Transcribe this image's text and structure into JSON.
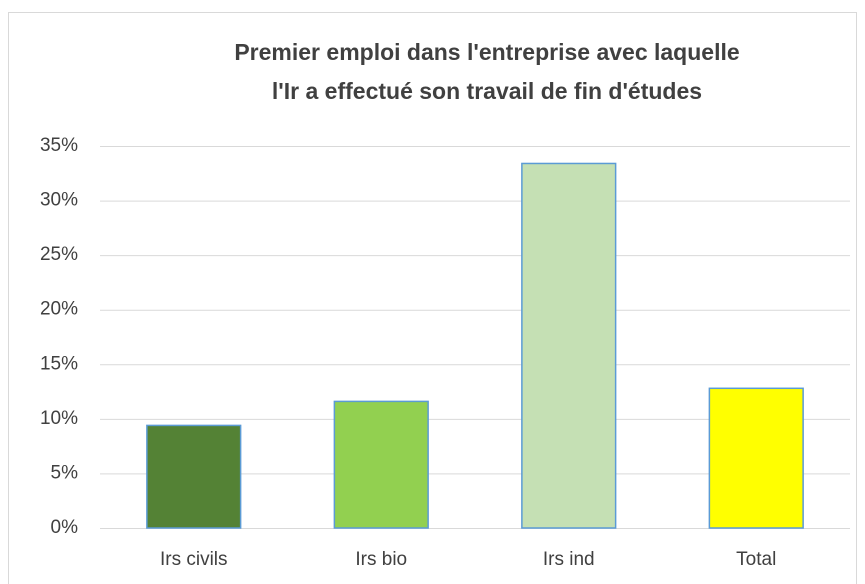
{
  "chart_data": {
    "type": "bar",
    "title": [
      "Premier emploi dans l'entreprise avec laquelle",
      "l'Ir a effectué son travail de fin d'études"
    ],
    "categories": [
      "Irs civils",
      "Irs bio",
      "Irs ind",
      "Total"
    ],
    "values": [
      9.4,
      11.6,
      33.4,
      12.8
    ],
    "colors": [
      "#548235",
      "#92d050",
      "#c5e0b4",
      "#ffff00"
    ],
    "ylim": [
      0,
      35
    ],
    "yticks": [
      {
        "value": 0,
        "label": "0%"
      },
      {
        "value": 5,
        "label": "5%"
      },
      {
        "value": 10,
        "label": "10%"
      },
      {
        "value": 15,
        "label": "15%"
      },
      {
        "value": 20,
        "label": "20%"
      },
      {
        "value": 25,
        "label": "25%"
      },
      {
        "value": 30,
        "label": "30%"
      },
      {
        "value": 35,
        "label": "35%"
      }
    ],
    "grid": true
  }
}
